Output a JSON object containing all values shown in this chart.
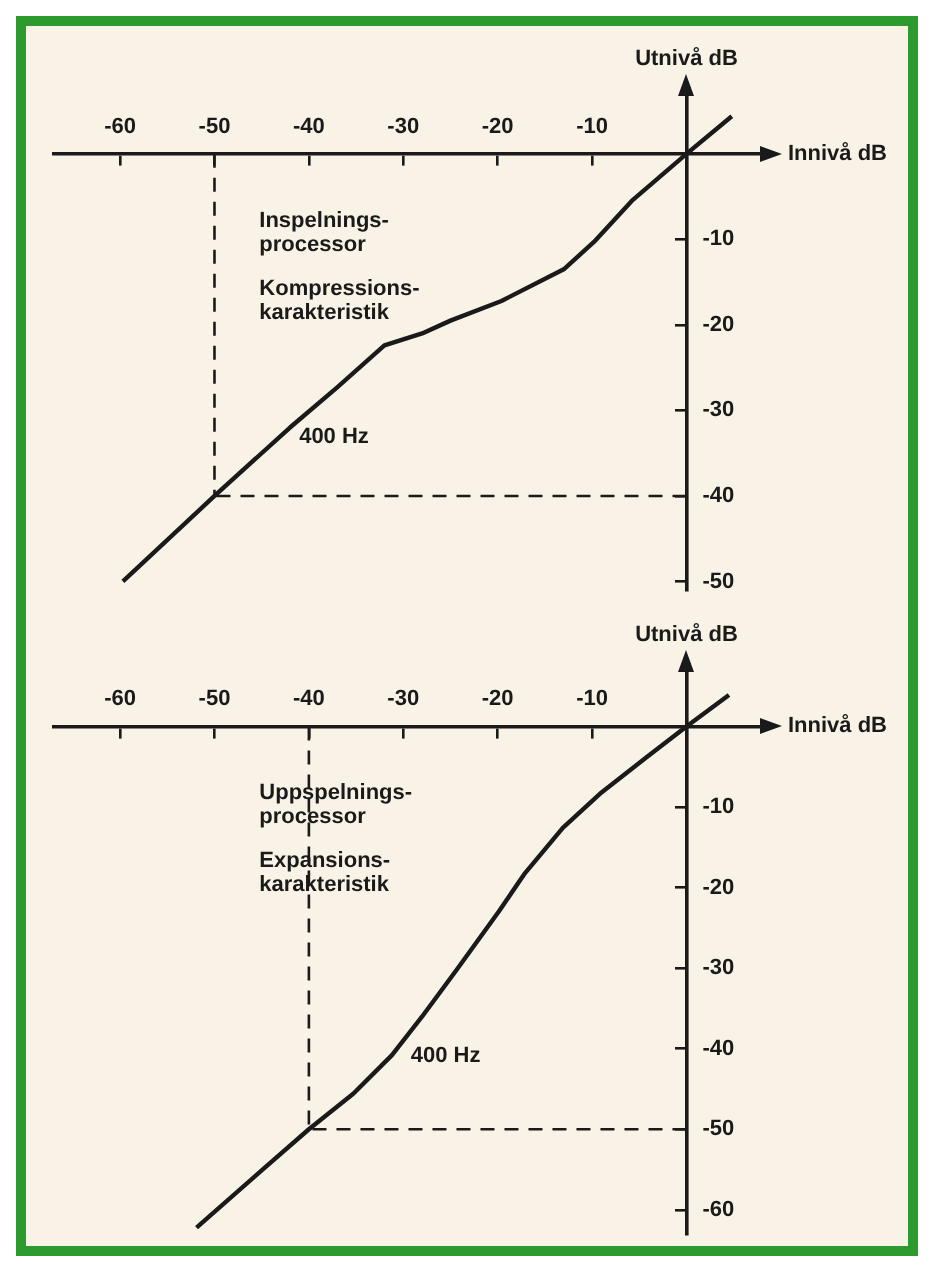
{
  "chart_data": [
    {
      "type": "line",
      "xlabel": "Innivå dB",
      "ylabel": "Utnivå dB",
      "xlim": [
        -67,
        8
      ],
      "ylim": [
        -51,
        7
      ],
      "xticks": [
        -60,
        -50,
        -40,
        -30,
        -20,
        -10
      ],
      "yticks": [
        -10,
        -20,
        -30,
        -40,
        -50
      ],
      "grid": false,
      "legend": false,
      "marker": "none",
      "line_style": "solid",
      "series": [
        {
          "color": "#1a1a1a",
          "x": [
            -59.7,
            -50,
            -42,
            -37,
            -32,
            -28,
            -25,
            -19.6,
            -13,
            -9.8,
            -5.8,
            0,
            4.8
          ],
          "values": [
            -50,
            -40,
            -32,
            -27.3,
            -22.4,
            -21,
            -19.5,
            -17.2,
            -13.5,
            -10.3,
            -5.5,
            0,
            4.4
          ]
        }
      ],
      "ref_lines": [
        {
          "axis": "x",
          "value": -50,
          "line_style": "dashed",
          "color": "#1a1a1a"
        },
        {
          "axis": "y",
          "value": -40,
          "line_style": "dashed",
          "color": "#1a1a1a"
        }
      ],
      "annotations": [
        "Inspelnings-\nprocessor",
        "Kompressions-\nkarakteristik",
        "400 Hz"
      ]
    },
    {
      "type": "line",
      "xlabel": "Innivå dB",
      "ylabel": "Utnivå dB",
      "xlim": [
        -67,
        8
      ],
      "ylim": [
        -63,
        7
      ],
      "xticks": [
        -60,
        -50,
        -40,
        -30,
        -20,
        -10
      ],
      "yticks": [
        -10,
        -20,
        -30,
        -40,
        -50,
        -60
      ],
      "grid": false,
      "legend": false,
      "marker": "none",
      "line_style": "solid",
      "series": [
        {
          "color": "#1a1a1a",
          "x": [
            -51.9,
            -45,
            -40,
            -35.3,
            -31.2,
            -28,
            -24.4,
            -19.9,
            -17.1,
            -13.1,
            -9,
            -4.2,
            0,
            4.5
          ],
          "values": [
            -62.2,
            -55.1,
            -50,
            -45.6,
            -40.8,
            -36,
            -30.3,
            -23,
            -18.2,
            -12.6,
            -8.2,
            -3.8,
            0,
            3.9
          ]
        }
      ],
      "ref_lines": [
        {
          "axis": "x",
          "value": -40,
          "line_style": "dashed",
          "color": "#1a1a1a"
        },
        {
          "axis": "y",
          "value": -50,
          "line_style": "dashed",
          "color": "#1a1a1a"
        }
      ],
      "annotations": [
        "Uppspelnings-\nprocessor",
        "Expansions-\nkarakteristik",
        "400 Hz"
      ]
    }
  ]
}
